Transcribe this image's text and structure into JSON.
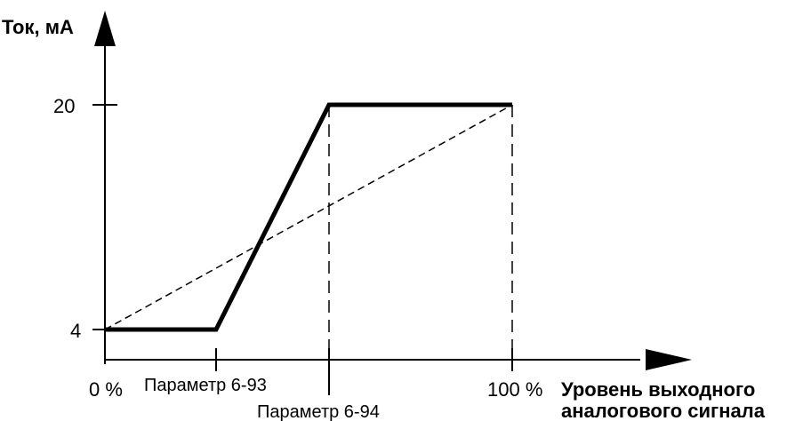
{
  "diagram": {
    "y_axis_label": "Ток, мА",
    "x_axis_label_line1": "Уровень выходного",
    "x_axis_label_line2": "аналогового сигнала",
    "y_ticks": {
      "low": "4",
      "high": "20"
    },
    "x_ticks": {
      "zero": "0 %",
      "hundred": "100 %"
    },
    "param_labels": {
      "p93": "Параметр 6-93",
      "p94": "Параметр 6-94"
    }
  }
}
